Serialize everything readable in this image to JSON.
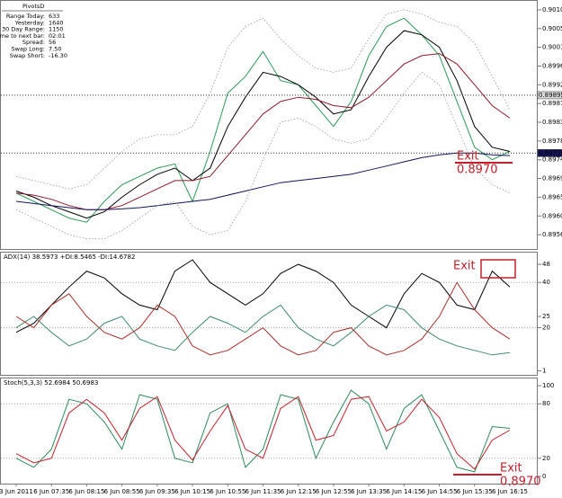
{
  "info": {
    "title": "PivotsD",
    "rows": [
      [
        "Range  Today:",
        "633"
      ],
      [
        "Yesterday:",
        "1640"
      ],
      [
        "30 Day Range:",
        "1150"
      ],
      [
        "Time to next bar:",
        "02:01"
      ],
      [
        "Spread:",
        "56"
      ],
      [
        "Swap  Long:",
        "7.50"
      ],
      [
        "Swap  Short:",
        "-16.30"
      ]
    ]
  },
  "time_axis": {
    "categories": [
      "3 Jun 2011",
      null,
      "6 Jun 07:35",
      null,
      "6 Jun 08:15",
      null,
      "6 Jun 08:55",
      null,
      "6 Jun 09:35",
      null,
      "6 Jun 10:15",
      null,
      "6 Jun 10:55",
      null,
      "6 Jun 11:35",
      null,
      "6 Jun 12:15",
      null,
      "6 Jun 12:55",
      null,
      "6 Jun 13:35",
      null,
      "6 Jun 14:15",
      null,
      "6 Jun 14:55",
      null,
      "6 Jun 15:35",
      null,
      "6 Jun 16:15"
    ]
  },
  "chart_data": [
    {
      "type": "line",
      "ylim": [
        0.8953,
        0.90115
      ],
      "yticks": [
        {
          "value": 0.901,
          "label": "0.90100"
        },
        {
          "value": 0.90055,
          "label": "0.90055"
        },
        {
          "value": 0.9001,
          "label": "0.90010"
        },
        {
          "value": 0.89965,
          "label": "0.89965"
        },
        {
          "value": 0.8992,
          "label": "0.89920"
        },
        {
          "value": 0.89875,
          "label": "0.89875"
        },
        {
          "value": 0.8983,
          "label": "0.89830"
        },
        {
          "value": 0.89785,
          "label": "0.89785"
        },
        {
          "value": 0.8974,
          "label": "0.89740"
        },
        {
          "value": 0.89695,
          "label": "0.89695"
        },
        {
          "value": 0.8965,
          "label": "0.89650"
        },
        {
          "value": 0.89605,
          "label": "0.89605"
        },
        {
          "value": 0.8956,
          "label": "0.89560"
        }
      ],
      "price_levels": [
        {
          "value": 0.89895,
          "label": "0.89895"
        },
        {
          "value": 0.89756,
          "label": "0.89756"
        }
      ],
      "annotations": [
        "Exit",
        "0.8970"
      ],
      "series": [
        {
          "name": "Close",
          "color": "#2e9a58",
          "values": [
            0.8966,
            0.8964,
            0.8962,
            0.896,
            0.8959,
            0.8964,
            0.8968,
            0.897,
            0.8972,
            0.8973,
            0.8964,
            0.8976,
            0.899,
            0.8994,
            0.9,
            0.8993,
            0.8992,
            0.8987,
            0.8982,
            0.8988,
            0.8999,
            0.9006,
            0.9008,
            0.9004,
            0.8999,
            0.8988,
            0.8977,
            0.8974,
            0.8976
          ]
        },
        {
          "name": "Fast MA",
          "color": "#000000",
          "values": [
            0.89665,
            0.8965,
            0.8963,
            0.89615,
            0.896,
            0.89615,
            0.8965,
            0.8968,
            0.89705,
            0.8972,
            0.8969,
            0.8972,
            0.8982,
            0.8989,
            0.8995,
            0.8994,
            0.8992,
            0.8989,
            0.8985,
            0.8986,
            0.8994,
            0.9001,
            0.9005,
            0.9004,
            0.9001,
            0.8993,
            0.8982,
            0.8977,
            0.8976
          ]
        },
        {
          "name": "Slow MA",
          "color": "#8b1a2b",
          "values": [
            0.8966,
            0.89655,
            0.89645,
            0.8963,
            0.8962,
            0.8962,
            0.8963,
            0.8965,
            0.8967,
            0.8969,
            0.8969,
            0.897,
            0.8975,
            0.898,
            0.8985,
            0.8988,
            0.8989,
            0.89885,
            0.8987,
            0.89865,
            0.8989,
            0.8993,
            0.8997,
            0.8999,
            0.89995,
            0.8997,
            0.8992,
            0.8987,
            0.8984
          ]
        },
        {
          "name": "Long MA",
          "color": "#14145a",
          "values": [
            0.8964,
            0.89635,
            0.8963,
            0.89625,
            0.8962,
            0.8962,
            0.89622,
            0.89625,
            0.8963,
            0.89635,
            0.8964,
            0.89645,
            0.89655,
            0.89665,
            0.89675,
            0.89685,
            0.8969,
            0.89695,
            0.897,
            0.89705,
            0.89715,
            0.89725,
            0.89735,
            0.89745,
            0.89752,
            0.89756,
            0.89756,
            0.89752,
            0.8975
          ]
        },
        {
          "name": "Upper Band",
          "color": "#999999",
          "dashed": true,
          "values": [
            0.897,
            0.8969,
            0.8968,
            0.8967,
            0.8968,
            0.8972,
            0.8976,
            0.8979,
            0.898,
            0.898,
            0.8982,
            0.899,
            0.9001,
            0.9006,
            0.9008,
            0.9003,
            0.8999,
            0.8996,
            0.8995,
            0.8996,
            0.9003,
            0.9009,
            0.901,
            0.9009,
            0.9007,
            0.9006,
            0.9002,
            0.8994,
            0.8986
          ]
        },
        {
          "name": "Lower Band",
          "color": "#999999",
          "dashed": true,
          "values": [
            0.8962,
            0.896,
            0.8958,
            0.8956,
            0.8955,
            0.8955,
            0.8957,
            0.896,
            0.8963,
            0.8964,
            0.8958,
            0.8956,
            0.8957,
            0.8964,
            0.8974,
            0.8983,
            0.8984,
            0.8982,
            0.8979,
            0.8978,
            0.8979,
            0.8984,
            0.899,
            0.8995,
            0.8992,
            0.8982,
            0.8972,
            0.8968,
            0.8966
          ]
        }
      ]
    },
    {
      "type": "line",
      "title": "ADX(14) 38.5973 +DI:8.5465 -DI:14.6782",
      "ylim": [
        0,
        52
      ],
      "yticks": [
        48,
        40,
        25,
        20,
        1
      ],
      "levels": [
        40,
        20
      ],
      "annotations": [
        "Exit"
      ],
      "series": [
        {
          "name": "ADX",
          "color": "#000000",
          "values": [
            18,
            22,
            30,
            38,
            45,
            42,
            35,
            30,
            28,
            45,
            50,
            40,
            35,
            30,
            35,
            44,
            48,
            45,
            40,
            30,
            25,
            20,
            35,
            44,
            40,
            30,
            28,
            45,
            38
          ]
        },
        {
          "name": "+DI",
          "color": "#3f8a6a",
          "values": [
            20,
            25,
            18,
            12,
            15,
            22,
            25,
            15,
            12,
            10,
            18,
            25,
            22,
            18,
            25,
            30,
            20,
            15,
            12,
            18,
            25,
            30,
            28,
            20,
            15,
            12,
            10,
            8,
            9
          ]
        },
        {
          "name": "-DI",
          "color": "#a8302a",
          "values": [
            25,
            20,
            30,
            35,
            25,
            18,
            15,
            20,
            30,
            25,
            12,
            8,
            10,
            15,
            20,
            12,
            8,
            10,
            18,
            20,
            12,
            8,
            10,
            15,
            25,
            40,
            28,
            20,
            15
          ]
        }
      ]
    },
    {
      "type": "line",
      "title": "Stoch(5,3,3) 52.6984 50.6983",
      "ylim": [
        -5,
        105
      ],
      "yticks": [
        100,
        80,
        20,
        0
      ],
      "levels": [
        80,
        20
      ],
      "annotations": [
        "Exit",
        "0.8970"
      ],
      "series": [
        {
          "name": "Main",
          "color": "#2e8a5a",
          "values": [
            20,
            10,
            30,
            85,
            80,
            60,
            30,
            90,
            85,
            20,
            15,
            70,
            80,
            10,
            30,
            90,
            85,
            20,
            60,
            95,
            80,
            30,
            75,
            90,
            50,
            10,
            5,
            55,
            53
          ]
        },
        {
          "name": "Signal",
          "color": "#c0202a",
          "values": [
            25,
            15,
            20,
            70,
            85,
            70,
            40,
            75,
            88,
            40,
            18,
            50,
            78,
            30,
            20,
            75,
            88,
            40,
            45,
            85,
            88,
            50,
            60,
            85,
            65,
            25,
            8,
            40,
            51
          ]
        }
      ]
    }
  ]
}
